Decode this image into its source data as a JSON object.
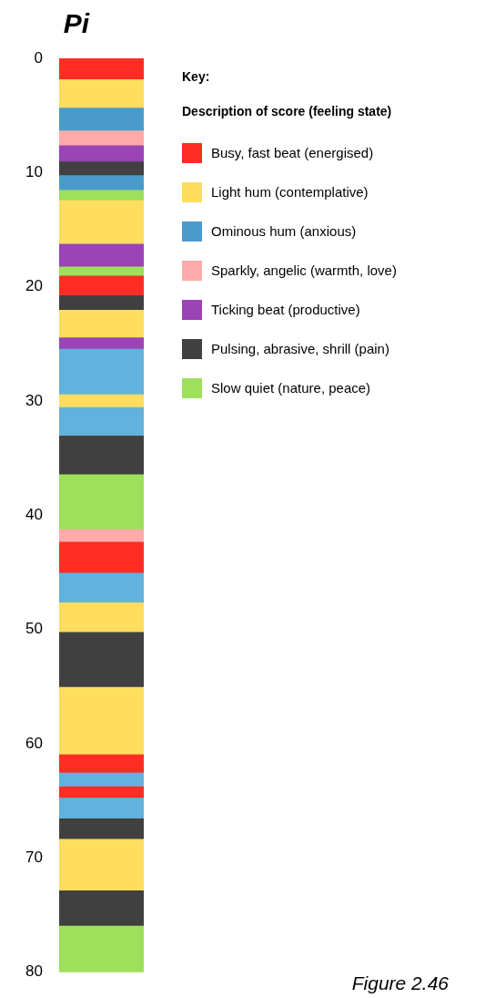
{
  "chart_data": {
    "type": "bar",
    "title": "Pi",
    "legend_title": "Key:",
    "stacked": true,
    "categories": [
      null
    ],
    "ylim": [
      80,
      0
    ],
    "yticks": [
      0,
      10,
      20,
      30,
      40,
      50,
      60,
      70,
      80
    ],
    "tick_labels": "y",
    "grid": false,
    "legend": "right",
    "annotations": [
      "Description of score (feeling state)",
      "Figure 2.46"
    ],
    "series": [
      {
        "name": "Busy, fast beat (energised)",
        "color": "#ff2d24",
        "values": [
          1.8
        ]
      },
      {
        "name": "Light hum (contemplative)",
        "color": "#ffdd5e",
        "values": [
          2.5
        ]
      },
      {
        "name": "Ominous hum (anxious)",
        "color": "#4a9bc9",
        "values": [
          2.0
        ]
      },
      {
        "name": "Sparkly, angelic (warmth, love)",
        "color": "#ffaaaa",
        "values": [
          1.3
        ]
      },
      {
        "name": "Ticking beat (productive)",
        "color": "#9a44b5",
        "values": [
          1.4
        ]
      },
      {
        "name": "Pulsing, abrasive, shrill (pain)",
        "color": "#404040",
        "values": [
          1.2
        ]
      },
      {
        "color": "#4a9bc9",
        "values": [
          1.3
        ]
      },
      {
        "name": "Slow quiet (nature, peace)",
        "color": "#9ee05a",
        "values": [
          0.9
        ]
      },
      {
        "color": "#ffdd5e",
        "values": [
          3.8
        ]
      },
      {
        "color": "#9a44b5",
        "values": [
          2.0
        ]
      },
      {
        "color": "#9ee05a",
        "values": [
          0.8
        ]
      },
      {
        "color": "#ff2d24",
        "values": [
          1.7
        ]
      },
      {
        "color": "#404040",
        "values": [
          1.3
        ]
      },
      {
        "color": "#ffdd5e",
        "values": [
          2.4
        ]
      },
      {
        "color": "#9a44b5",
        "values": [
          1.0
        ]
      },
      {
        "color": "#62b2dd",
        "values": [
          4.0
        ]
      },
      {
        "color": "#ffdd5e",
        "values": [
          1.1
        ]
      },
      {
        "color": "#62b2dd",
        "values": [
          2.5
        ]
      },
      {
        "color": "#404040",
        "values": [
          3.4
        ]
      },
      {
        "color": "#9ee05a",
        "values": [
          4.8
        ]
      },
      {
        "color": "#ffaaaa",
        "values": [
          1.1
        ]
      },
      {
        "color": "#ff2d24",
        "values": [
          2.7
        ]
      },
      {
        "color": "#62b2dd",
        "values": [
          2.6
        ]
      },
      {
        "color": "#ffdd5e",
        "values": [
          2.6
        ]
      },
      {
        "color": "#404040",
        "values": [
          4.8
        ]
      },
      {
        "color": "#ffdd5e",
        "values": [
          5.9
        ]
      },
      {
        "color": "#ff2d24",
        "values": [
          1.6
        ]
      },
      {
        "color": "#62b2dd",
        "values": [
          1.2
        ]
      },
      {
        "color": "#ff2d24",
        "values": [
          1.0
        ]
      },
      {
        "color": "#62b2dd",
        "values": [
          1.8
        ]
      },
      {
        "color": "#404040",
        "values": [
          1.8
        ]
      },
      {
        "color": "#ffdd5e",
        "values": [
          4.5
        ]
      },
      {
        "color": "#404040",
        "values": [
          3.1
        ]
      },
      {
        "color": "#9ee05a",
        "values": [
          4.1
        ]
      }
    ]
  }
}
